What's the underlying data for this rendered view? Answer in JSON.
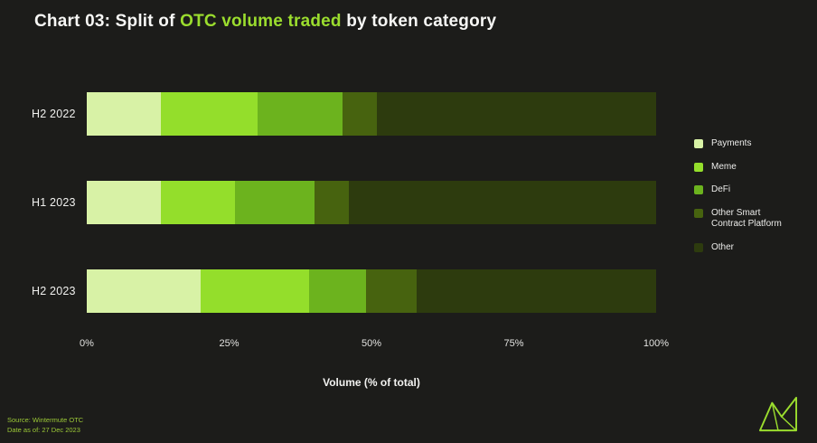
{
  "title": {
    "prefix": "Chart 03: Split of ",
    "highlight": "OTC volume traded",
    "suffix": " by token category"
  },
  "chart_data": {
    "type": "bar",
    "orientation": "horizontal",
    "stacked": true,
    "categories": [
      "H2 2022",
      "H1 2023",
      "H2 2023"
    ],
    "series": [
      {
        "name": "Payments",
        "color": "#d8f2a6",
        "values": [
          13,
          13,
          20
        ]
      },
      {
        "name": "Meme",
        "color": "#94de2b",
        "values": [
          17,
          13,
          19
        ]
      },
      {
        "name": "DeFi",
        "color": "#6cb31e",
        "values": [
          15,
          14,
          10
        ]
      },
      {
        "name": "Other Smart Contract Platform",
        "color": "#47630f",
        "values": [
          6,
          6,
          9
        ]
      },
      {
        "name": "Other",
        "color": "#2d3b0e",
        "values": [
          49,
          54,
          42
        ]
      }
    ],
    "x_ticks": [
      "0%",
      "25%",
      "50%",
      "75%",
      "100%"
    ],
    "xlim": [
      0,
      100
    ],
    "xlabel": "Volume (% of total)",
    "legend_position": "right",
    "grid": false
  },
  "footer": {
    "source": "Source: Wintermute OTC",
    "date": "Date as of: 27 Dec 2023"
  },
  "brand": {
    "accent": "#9bdd2e",
    "logo": "wintermute-logo"
  }
}
